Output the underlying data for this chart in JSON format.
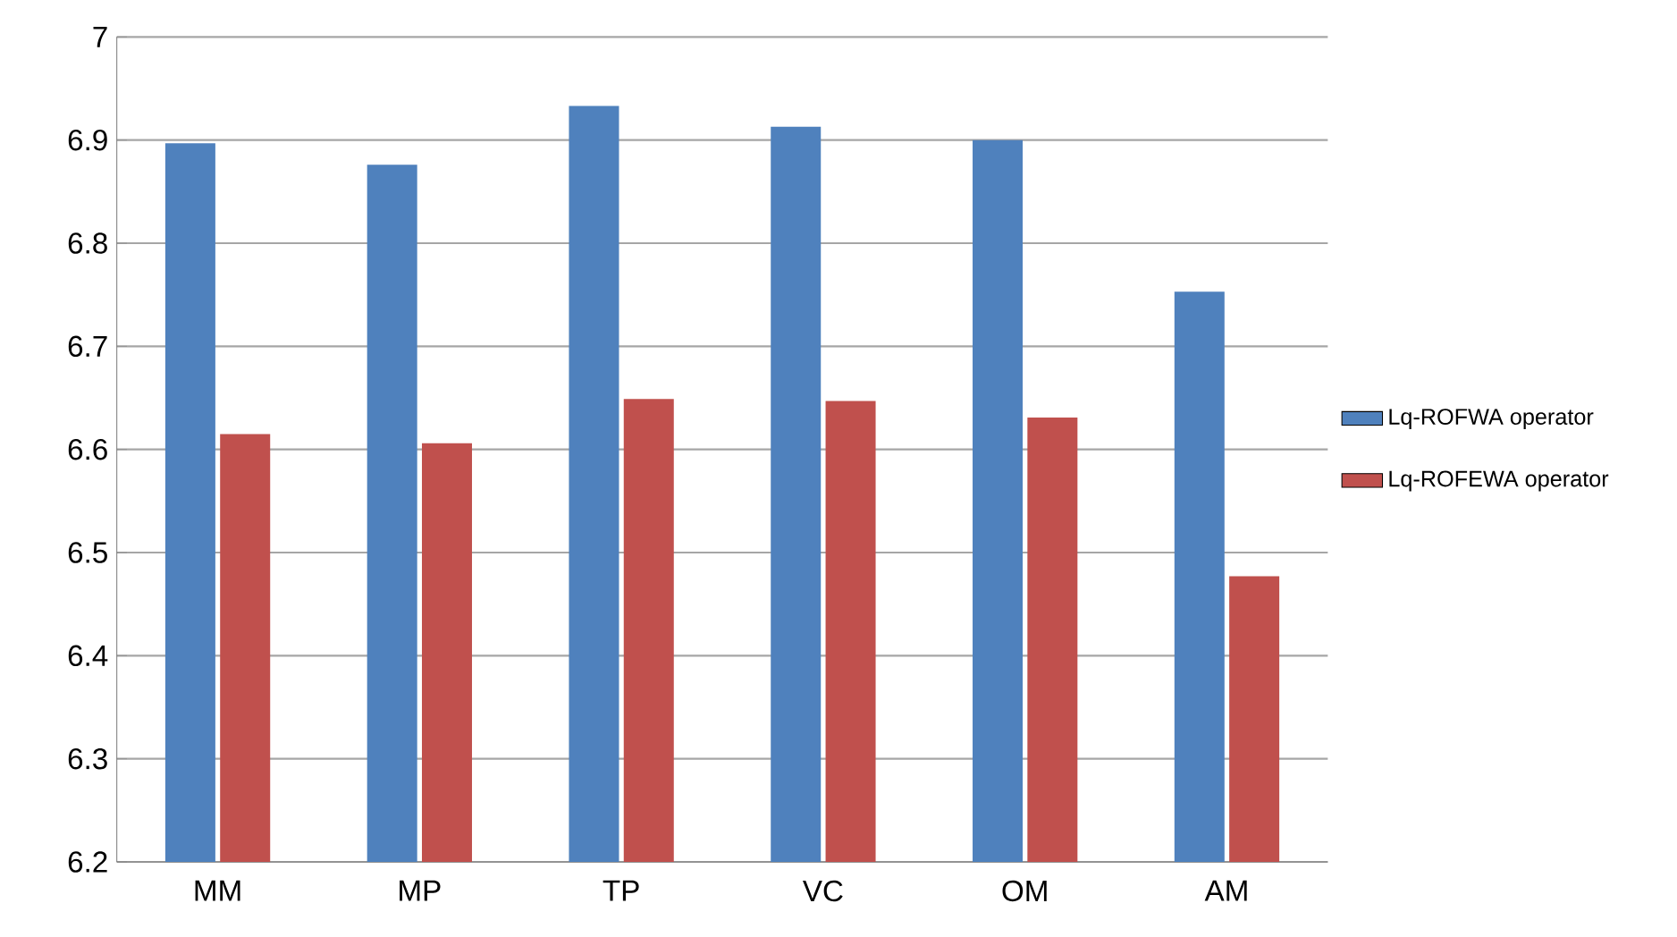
{
  "chart_data": {
    "type": "bar",
    "categories": [
      "MM",
      "MP",
      "TP",
      "VC",
      "OM",
      "AM"
    ],
    "series": [
      {
        "name": "Lq-ROFWA operator",
        "color": "#4f81bd",
        "values": [
          6.897,
          6.876,
          6.933,
          6.913,
          6.9,
          6.753
        ]
      },
      {
        "name": "Lq-ROFEWA operator",
        "color": "#c0504d",
        "values": [
          6.615,
          6.606,
          6.649,
          6.647,
          6.631,
          6.477
        ]
      }
    ],
    "ylim": [
      6.2,
      7
    ],
    "yticks": [
      6.2,
      6.3,
      6.4,
      6.5,
      6.6,
      6.7,
      6.8,
      6.9,
      7
    ],
    "grid": "y",
    "legend": "right"
  }
}
